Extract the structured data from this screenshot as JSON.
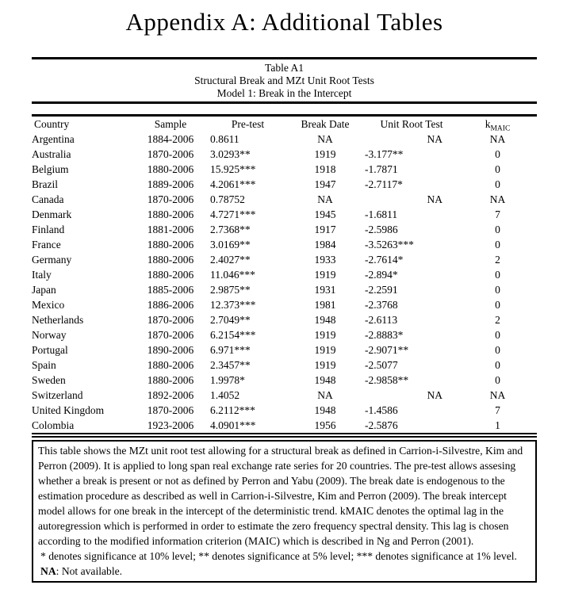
{
  "page_title": "Appendix A: Additional Tables",
  "table": {
    "title": "Table A1",
    "subtitle1": "Structural Break and MZt Unit Root Tests",
    "subtitle2": "Model 1: Break in the Intercept",
    "columns": [
      "Country",
      "Sample",
      "Pre-test",
      "Break Date",
      "Unit Root Test",
      "kMAIC"
    ],
    "kmaic_header": {
      "base": "k",
      "sub": "MAIC"
    },
    "column_keys": [
      "country",
      "sample",
      "pretest",
      "break-date",
      "unit-root-test",
      "kmaic"
    ],
    "rows": [
      [
        "Argentina",
        "1884-2006",
        "0.8611",
        "NA",
        "NA",
        "NA"
      ],
      [
        "Australia",
        "1870-2006",
        "3.0293**",
        "1919",
        "-3.177**",
        "0"
      ],
      [
        "Belgium",
        "1880-2006",
        "15.925***",
        "1918",
        "-1.7871",
        "0"
      ],
      [
        "Brazil",
        "1889-2006",
        "4.2061***",
        "1947",
        "-2.7117*",
        "0"
      ],
      [
        "Canada",
        "1870-2006",
        "0.78752",
        "NA",
        "NA",
        "NA"
      ],
      [
        "Denmark",
        "1880-2006",
        "4.7271***",
        "1945",
        "-1.6811",
        "7"
      ],
      [
        "Finland",
        "1881-2006",
        "2.7368**",
        "1917",
        "-2.5986",
        "0"
      ],
      [
        "France",
        "1880-2006",
        "3.0169**",
        "1984",
        "-3.5263***",
        "0"
      ],
      [
        "Germany",
        "1880-2006",
        "2.4027**",
        "1933",
        "-2.7614*",
        "2"
      ],
      [
        "Italy",
        "1880-2006",
        "11.046***",
        "1919",
        "-2.894*",
        "0"
      ],
      [
        "Japan",
        "1885-2006",
        "2.9875**",
        "1931",
        "-2.2591",
        "0"
      ],
      [
        "Mexico",
        "1886-2006",
        "12.373***",
        "1981",
        "-2.3768",
        "0"
      ],
      [
        "Netherlands",
        "1870-2006",
        "2.7049**",
        "1948",
        "-2.6113",
        "2"
      ],
      [
        "Norway",
        "1870-2006",
        "6.2154***",
        "1919",
        "-2.8883*",
        "0"
      ],
      [
        "Portugal",
        "1890-2006",
        "6.971***",
        "1919",
        "-2.9071**",
        "0"
      ],
      [
        "Spain",
        "1880-2006",
        "2.3457**",
        "1919",
        "-2.5077",
        "0"
      ],
      [
        "Sweden",
        "1880-2006",
        "1.9978*",
        "1948",
        "-2.9858**",
        "0"
      ],
      [
        "Switzerland",
        "1892-2006",
        "1.4052",
        "NA",
        "NA",
        "NA"
      ],
      [
        "United Kingdom",
        "1870-2006",
        "6.2112***",
        "1948",
        "-1.4586",
        "7"
      ],
      [
        "Colombia",
        "1923-2006",
        "4.0901***",
        "1956",
        "-2.5876",
        "1"
      ]
    ]
  },
  "notes": {
    "description": "This table shows the MZt unit root test allowing for a structural break as defined in Carrion-i-Silvestre, Kim and Perron (2009). It is applied to long span real exchange rate series for 20 countries. The pre-test allows assesing whether a break is present or not as defined by Perron and Yabu (2009). The break date is endogenous to the estimation procedure as described as well in Carrion-i-Silvestre, Kim and Perron (2009). The break intercept model allows for one break in the intercept of the deterministic trend. kMAIC denotes the optimal lag in the autoregression which is performed in order to estimate the zero frequency spectral density. This lag is chosen according to the modified information criterion (MAIC) which is described in Ng and Perron (2001).",
    "significance": "* denotes significance at 10% level; ** denotes significance at 5% level; *** denotes significance at 1% level. ",
    "na_term": "NA",
    "na_definition": ": Not available."
  }
}
